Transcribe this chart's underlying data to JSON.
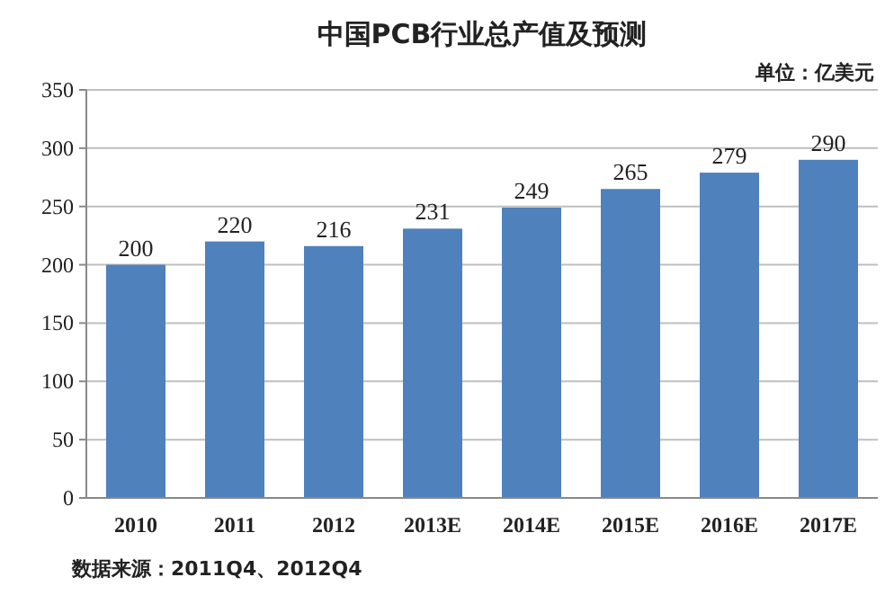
{
  "chart_data": {
    "type": "bar",
    "title": "中国PCB行业总产值及预测",
    "subtitle": "单位：亿美元",
    "categories": [
      "2010",
      "2011",
      "2012",
      "2013E",
      "2014E",
      "2015E",
      "2016E",
      "2017E"
    ],
    "values": [
      200,
      220,
      216,
      231,
      249,
      265,
      279,
      290
    ],
    "color": "#4f81bd",
    "ylim": [
      0,
      350
    ],
    "yticks": [
      0,
      50,
      100,
      150,
      200,
      250,
      300,
      350
    ],
    "grid": "y",
    "data_labels": true,
    "annotations": [
      "数据来源：2011Q4、2012Q4"
    ]
  }
}
